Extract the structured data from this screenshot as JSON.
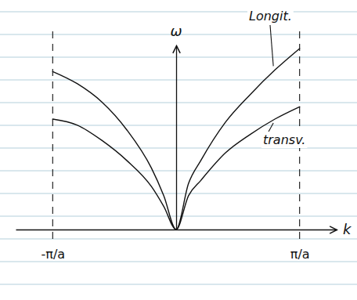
{
  "chart_data": {
    "type": "line",
    "x_label": "k",
    "y_label": "ω",
    "x": [
      -1,
      -0.8,
      -0.6,
      -0.4,
      -0.2,
      -0.1,
      0,
      0.1,
      0.2,
      0.4,
      0.6,
      0.8,
      1
    ],
    "series": [
      {
        "name": "Longit.",
        "color": "#111111",
        "values": [
          1.03,
          0.95,
          0.83,
          0.65,
          0.4,
          0.22,
          0,
          0.3,
          0.45,
          0.7,
          0.88,
          1.04,
          1.18
        ]
      },
      {
        "name": "transv.",
        "color": "#111111",
        "values": [
          0.72,
          0.68,
          0.58,
          0.45,
          0.28,
          0.15,
          0,
          0.22,
          0.32,
          0.5,
          0.62,
          0.72,
          0.8
        ]
      }
    ],
    "xlim": [
      -1.3,
      1.3
    ],
    "ylim": [
      0,
      1.2
    ],
    "xticks": [
      {
        "value": -1,
        "label": "-π/a"
      },
      {
        "value": 1,
        "label": "π/a"
      }
    ],
    "yticks": [],
    "tick_labels": "x"
  }
}
